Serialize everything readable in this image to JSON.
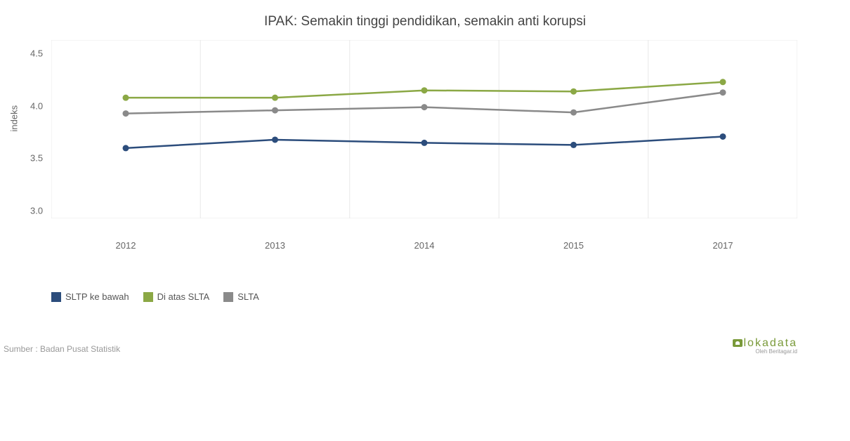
{
  "chart": {
    "type": "line",
    "title": "IPAK: Semakin tinggi pendidikan, semakin anti korupsi",
    "title_fontsize": 19,
    "background_color": "#ffffff",
    "plot_background": "#ffffff",
    "ylabel": "indeks",
    "label_fontsize": 13,
    "ylim": [
      2.8,
      4.5
    ],
    "yticks": [
      3.0,
      3.5,
      4.0,
      4.5
    ],
    "ytick_labels": [
      "3.0",
      "3.5",
      "4.0",
      "4.5"
    ],
    "categories": [
      "2012",
      "2013",
      "2014",
      "2015",
      "2017"
    ],
    "grid_color": "#e8e8e8",
    "tick_fontsize": 13,
    "tick_color": "#666666",
    "line_width": 2.5,
    "marker_size": 4.5,
    "series": [
      {
        "name": "SLTP ke bawah",
        "color": "#2c4d7c",
        "values": [
          3.47,
          3.55,
          3.52,
          3.5,
          3.58
        ]
      },
      {
        "name": "Di atas SLTA",
        "color": "#8ba845",
        "values": [
          3.95,
          3.95,
          4.02,
          4.01,
          4.1
        ]
      },
      {
        "name": "SLTA",
        "color": "#8a8a8a",
        "values": [
          3.8,
          3.83,
          3.86,
          3.81,
          4.0
        ]
      }
    ]
  },
  "source": "Sumber : Badan Pusat Statistik",
  "brand": {
    "name": "lokadata",
    "subtitle": "Oleh Beritagar.id",
    "color": "#7a9a3a"
  }
}
